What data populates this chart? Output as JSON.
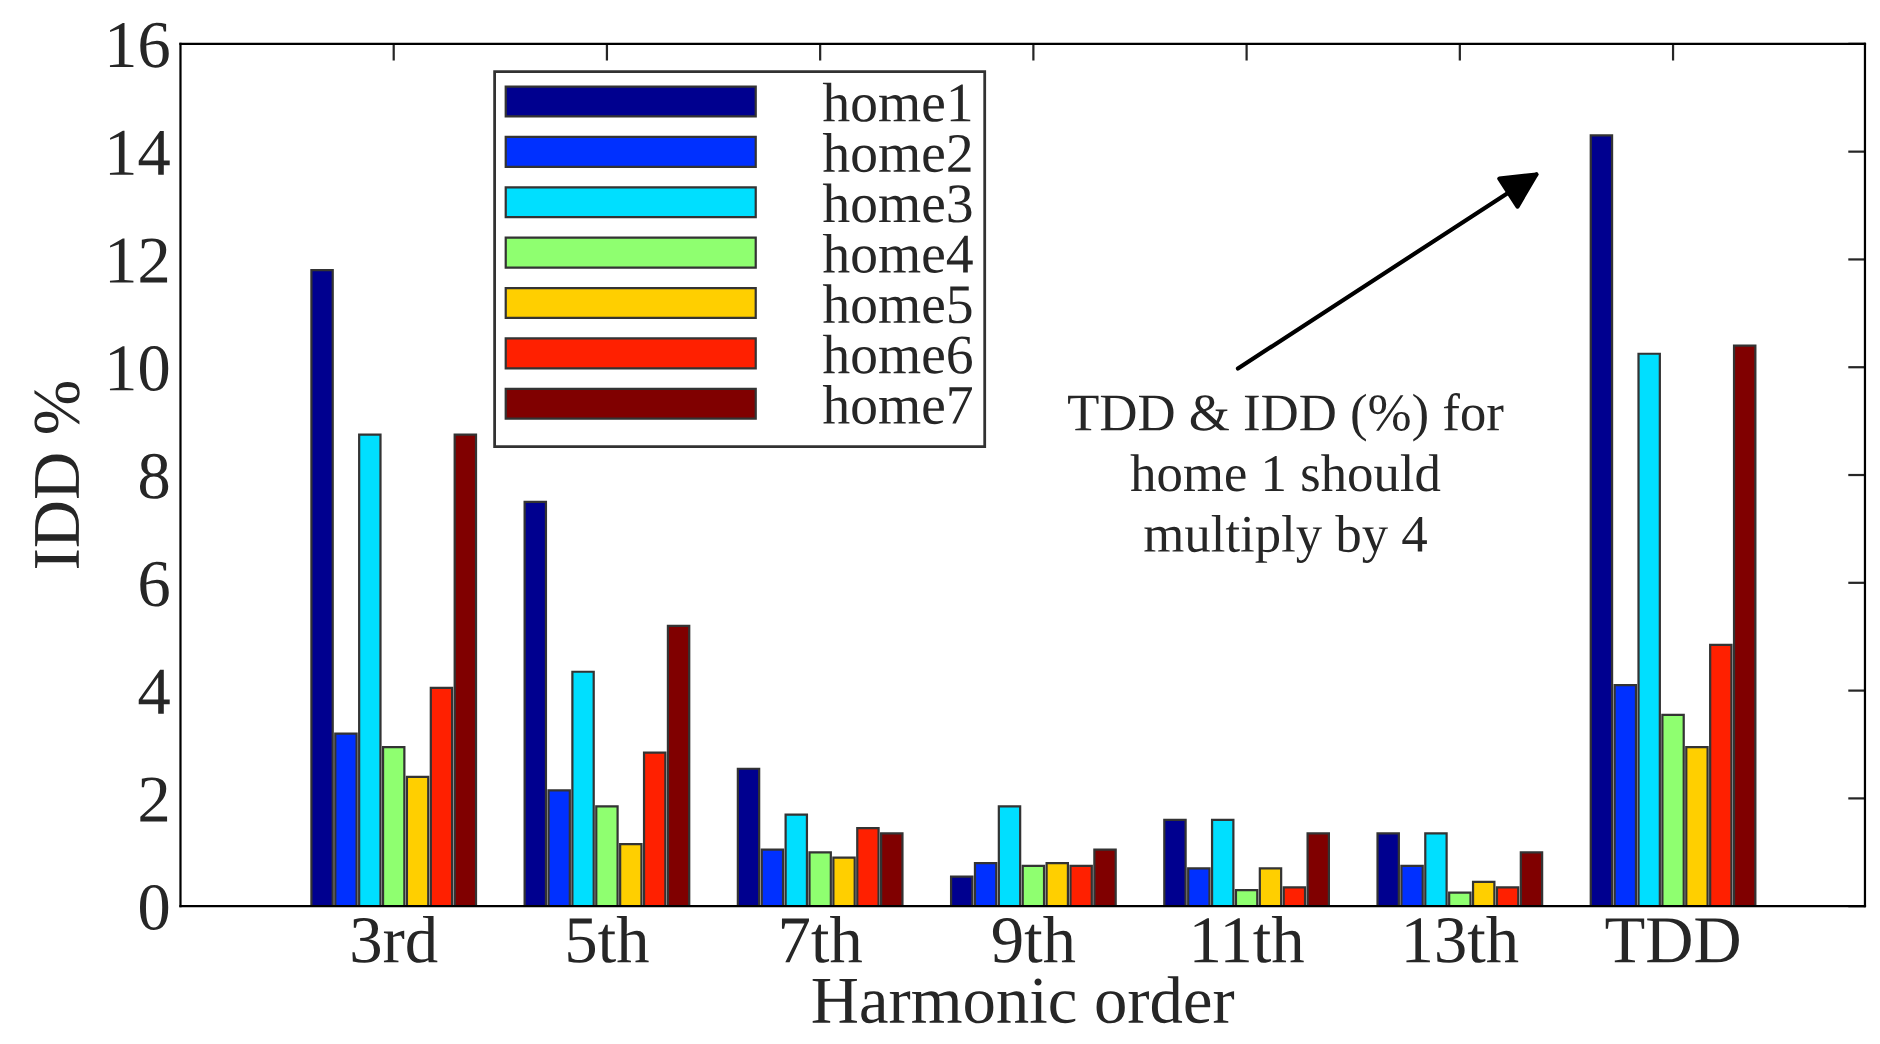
{
  "chart_data": {
    "type": "bar",
    "xlabel": "Harmonic order",
    "ylabel": "IDD %",
    "categories": [
      "3rd",
      "5th",
      "7th",
      "9th",
      "11th",
      "13th",
      "TDD"
    ],
    "series": [
      {
        "name": "home1",
        "color": "#00008f",
        "values": [
          11.8,
          7.5,
          2.55,
          0.55,
          1.6,
          1.35,
          14.3
        ]
      },
      {
        "name": "home2",
        "color": "#0030ff",
        "values": [
          3.2,
          2.15,
          1.05,
          0.8,
          0.7,
          0.75,
          4.1
        ]
      },
      {
        "name": "home3",
        "color": "#00dfff",
        "values": [
          8.75,
          4.35,
          1.7,
          1.85,
          1.6,
          1.35,
          10.25
        ]
      },
      {
        "name": "home4",
        "color": "#8fff70",
        "values": [
          2.95,
          1.85,
          1.0,
          0.75,
          0.3,
          0.25,
          3.55
        ]
      },
      {
        "name": "home5",
        "color": "#ffcf00",
        "values": [
          2.4,
          1.15,
          0.9,
          0.8,
          0.7,
          0.45,
          2.95
        ]
      },
      {
        "name": "home6",
        "color": "#ff2000",
        "values": [
          4.05,
          2.85,
          1.45,
          0.75,
          0.35,
          0.35,
          4.85
        ]
      },
      {
        "name": "home7",
        "color": "#800000",
        "values": [
          8.75,
          5.2,
          1.35,
          1.05,
          1.35,
          1.0,
          10.4
        ]
      }
    ],
    "ylim": [
      0,
      16
    ],
    "yticks": [
      0,
      2,
      4,
      6,
      8,
      10,
      12,
      14,
      16
    ],
    "grid": false,
    "legend": "top left",
    "annotations": [
      "TDD & IDD (%) for\nhome 1 should\nmultiply by 4"
    ]
  }
}
